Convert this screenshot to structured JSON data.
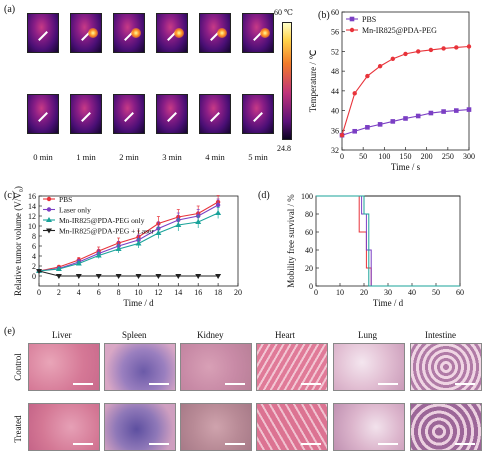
{
  "panel_labels": {
    "a": "(a)",
    "b": "(b)",
    "c": "(c)",
    "d": "(d)",
    "e": "(e)"
  },
  "thermal": {
    "times": [
      "0 min",
      "1 min",
      "2 min",
      "3 min",
      "4 min",
      "5 min"
    ],
    "scale_max": "60 ℃",
    "scale_min": "24.8"
  },
  "histology": {
    "organs": [
      "Liver",
      "Spleen",
      "Kidney",
      "Heart",
      "Lung",
      "Intestine"
    ],
    "rows": [
      "Control",
      "Treated"
    ]
  },
  "chart_data": [
    {
      "id": "b",
      "type": "line",
      "xlabel": "Time / s",
      "ylabel": "Temperature / ℃",
      "xlim": [
        0,
        300
      ],
      "ylim": [
        32,
        60
      ],
      "xticks": [
        0,
        50,
        100,
        150,
        200,
        250,
        300
      ],
      "yticks": [
        32,
        36,
        40,
        44,
        48,
        52,
        56,
        60
      ],
      "legend": "top-left",
      "x": [
        0,
        30,
        60,
        90,
        120,
        150,
        180,
        210,
        240,
        270,
        300
      ],
      "series": [
        {
          "name": "PBS",
          "color": "#7b3fc4",
          "marker": "square",
          "values": [
            35,
            35.8,
            36.6,
            37.2,
            37.8,
            38.4,
            38.9,
            39.5,
            39.8,
            40,
            40.2
          ]
        },
        {
          "name": "Mn-IR825@PDA-PEG",
          "color": "#e8333a",
          "marker": "circle",
          "values": [
            35,
            43.5,
            47,
            49,
            50.5,
            51.5,
            52,
            52.3,
            52.6,
            52.8,
            53
          ]
        }
      ]
    },
    {
      "id": "c",
      "type": "line",
      "xlabel": "Time / d",
      "ylabel": "Relative tumor volume (V/V₀)",
      "xlim": [
        0,
        20
      ],
      "ylim": [
        -2,
        16
      ],
      "xticks": [
        0,
        2,
        4,
        6,
        8,
        10,
        12,
        14,
        16,
        18,
        20
      ],
      "yticks": [
        0,
        2,
        4,
        6,
        8,
        10,
        12,
        14,
        16
      ],
      "legend": "top-left",
      "x": [
        0,
        2,
        4,
        6,
        8,
        10,
        12,
        14,
        16,
        18
      ],
      "series": [
        {
          "name": "PBS",
          "color": "#e8333a",
          "marker": "circle",
          "values": [
            1,
            1.8,
            3.2,
            5,
            6.6,
            7.8,
            10.5,
            11.8,
            12.5,
            14.8
          ],
          "errors": [
            0,
            0.3,
            0.5,
            0.8,
            1,
            1.2,
            1.4,
            1.5,
            1.5,
            1.3
          ]
        },
        {
          "name": "Laser only",
          "color": "#7b3fc4",
          "marker": "circle",
          "values": [
            1,
            1.5,
            2.8,
            4.5,
            6,
            7.2,
            9.5,
            11.2,
            12,
            14.2
          ],
          "errors": [
            0,
            0.3,
            0.5,
            0.7,
            0.9,
            1,
            1.3,
            1.4,
            1.3,
            1.2
          ]
        },
        {
          "name": "Mn-IR825@PDA-PEG only",
          "color": "#1aa39a",
          "marker": "triangle-up",
          "values": [
            1,
            1.4,
            2.5,
            4.1,
            5.4,
            6.5,
            8.6,
            10.2,
            10.8,
            12.6
          ],
          "errors": [
            0,
            0.2,
            0.4,
            0.6,
            0.8,
            0.9,
            1.1,
            1.2,
            1.2,
            1.1
          ]
        },
        {
          "name": "Mn-IR825@PDA-PEG + Laser",
          "color": "#222222",
          "marker": "triangle-down",
          "values": [
            1,
            0,
            0,
            0,
            0,
            0,
            0,
            0,
            0,
            0
          ],
          "errors": [
            0,
            0,
            0,
            0,
            0,
            0,
            0,
            0,
            0,
            0
          ]
        }
      ]
    },
    {
      "id": "d",
      "type": "line",
      "xlabel": "Time / d",
      "ylabel": "Mobility free survival / %",
      "xlim": [
        0,
        60
      ],
      "ylim": [
        0,
        100
      ],
      "xticks": [
        0,
        10,
        20,
        30,
        40,
        50,
        60
      ],
      "yticks": [
        0,
        20,
        40,
        60,
        80,
        100
      ],
      "series": [
        {
          "name": "",
          "color": "#222222",
          "steps": [
            [
              0,
              100
            ],
            [
              60,
              100
            ]
          ]
        },
        {
          "name": "",
          "color": "#e8333a",
          "steps": [
            [
              0,
              100
            ],
            [
              18,
              100
            ],
            [
              18,
              60
            ],
            [
              21,
              60
            ],
            [
              21,
              20
            ],
            [
              23,
              20
            ],
            [
              23,
              0
            ],
            [
              60,
              0
            ]
          ]
        },
        {
          "name": "",
          "color": "#7b3fc4",
          "steps": [
            [
              0,
              100
            ],
            [
              19,
              100
            ],
            [
              19,
              80
            ],
            [
              21,
              80
            ],
            [
              21,
              40
            ],
            [
              23,
              40
            ],
            [
              23,
              0
            ],
            [
              60,
              0
            ]
          ]
        },
        {
          "name": "",
          "color": "#1aa39a",
          "steps": [
            [
              0,
              100
            ],
            [
              20,
              100
            ],
            [
              20,
              80
            ],
            [
              22,
              80
            ],
            [
              22,
              0
            ],
            [
              60,
              0
            ]
          ]
        }
      ]
    }
  ]
}
